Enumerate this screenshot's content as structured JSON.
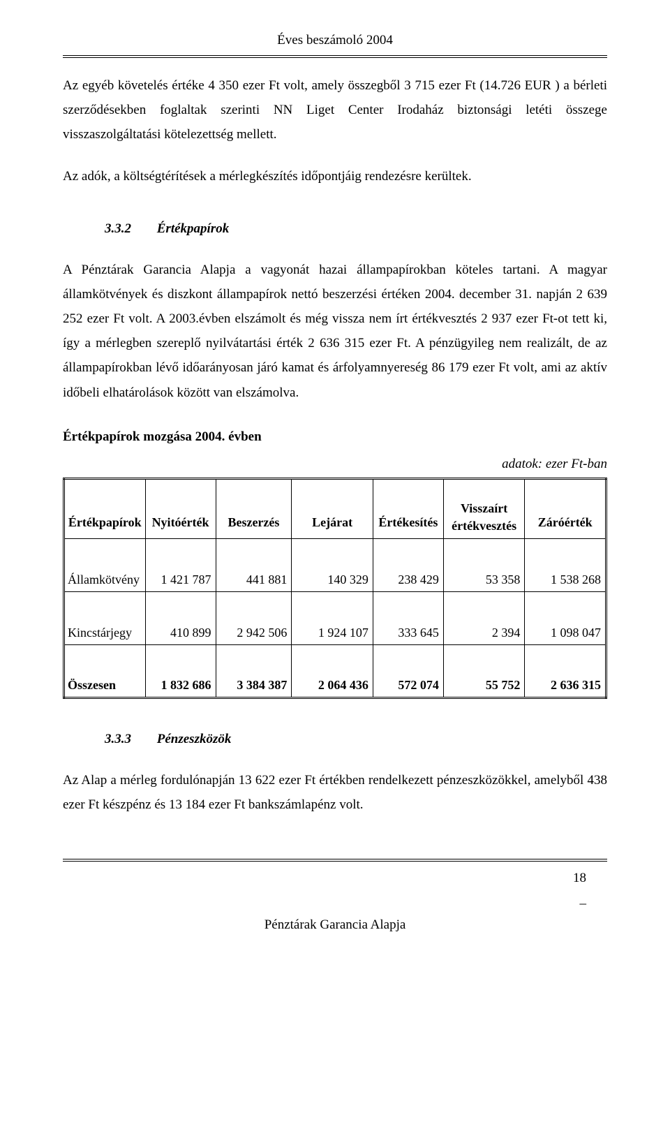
{
  "header": {
    "title": "Éves beszámoló 2004"
  },
  "paragraphs": {
    "p1": "Az egyéb követelés értéke 4 350 ezer Ft volt, amely összegből 3 715 ezer Ft (14.726 EUR ) a bérleti szerződésekben foglaltak szerinti NN Liget Center Irodaház biztonsági letéti összege visszaszolgáltatási kötelezettség mellett.",
    "p2": "Az adók, a költségtérítések a mérlegkészítés időpontjáig rendezésre kerültek."
  },
  "section332": {
    "num": "3.3.2",
    "title": "Értékpapírok",
    "body": "A Pénztárak Garancia Alapja a vagyonát hazai állampapírokban köteles tartani. A magyar államkötvények és diszkont állampapírok nettó beszerzési értéken 2004. december 31. napján 2 639 252 ezer Ft volt. A 2003.évben elszámolt és még vissza nem írt értékvesztés 2 937 ezer Ft-ot tett ki, így a mérlegben szereplő nyilvátartási érték 2 636 315 ezer Ft. A pénzügyileg nem realizált, de az állampapírokban lévő időarányosan járó kamat és árfolyamnyereség 86 179 ezer Ft volt, ami az aktív időbeli elhatárolások között van elszámolva."
  },
  "table": {
    "heading": "Értékpapírok mozgása 2004. évben",
    "units": "adatok: ezer Ft-ban",
    "columns": [
      "Értékpapírok",
      "Nyitóérték",
      "Beszerzés",
      "Lejárat",
      "Értékesítés",
      "Visszaírt értékvesztés",
      "Záróérték"
    ],
    "col5_line1": "Visszaírt",
    "col5_line2": "értékvesztés",
    "rows": [
      {
        "label": "Államkötvény",
        "c1": "1 421 787",
        "c2": "441 881",
        "c3": "140 329",
        "c4": "238 429",
        "c5": "53 358",
        "c6": "1 538 268"
      },
      {
        "label": "Kincstárjegy",
        "c1": "410 899",
        "c2": "2 942 506",
        "c3": "1 924 107",
        "c4": "333 645",
        "c5": "2 394",
        "c6": "1 098 047"
      }
    ],
    "total": {
      "label": "Összesen",
      "c1": "1 832 686",
      "c2": "3 384 387",
      "c3": "2 064 436",
      "c4": "572 074",
      "c5": "55 752",
      "c6": "2 636 315"
    },
    "col_widths": [
      "15%",
      "13%",
      "14%",
      "15%",
      "13%",
      "15%",
      "15%"
    ]
  },
  "section333": {
    "num": "3.3.3",
    "title": "Pénzeszközök",
    "body": "Az Alap a mérleg fordulónapján 13 622 ezer Ft értékben rendelkezett pénzeszközökkel, amelyből  438 ezer Ft készpénz és 13 184 ezer Ft bankszámlapénz volt."
  },
  "footer": {
    "page": "18",
    "dash": "_",
    "org": "Pénztárak Garancia Alapja"
  }
}
